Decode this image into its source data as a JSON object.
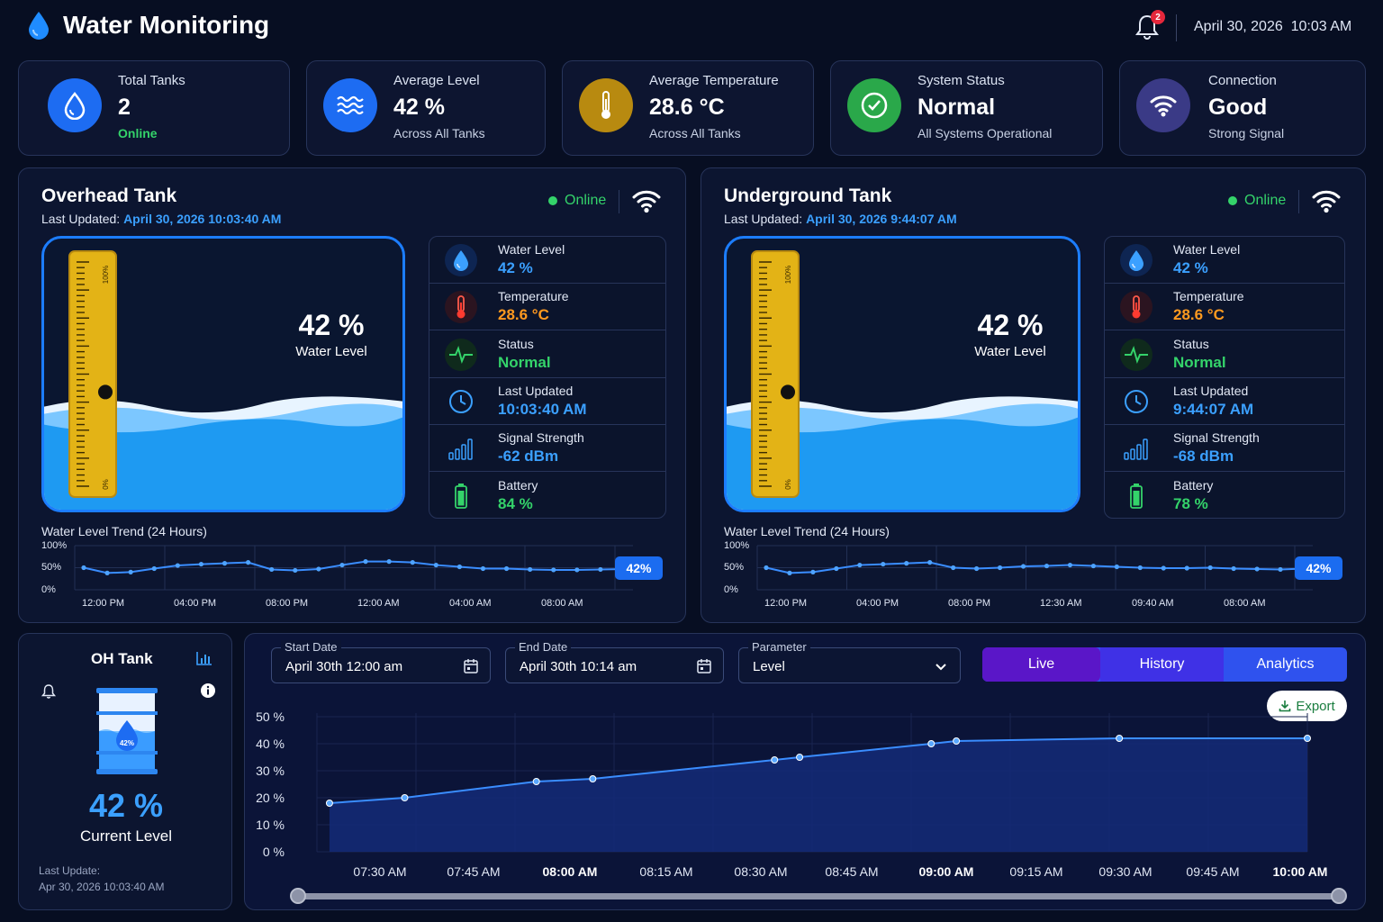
{
  "app": {
    "title": "Water Monitoring",
    "notifications": "2",
    "date": "April 30, 2026",
    "time": "10:03 AM"
  },
  "cards": [
    {
      "label": "Total Tanks",
      "value": "2",
      "sub": "Online",
      "icon": "water-drop-icon",
      "color": "#1d6cf2"
    },
    {
      "label": "Average Level",
      "value": "42 %",
      "sub": "Across All Tanks",
      "icon": "waves-icon",
      "color": "#1d6cf2"
    },
    {
      "label": "Average Temperature",
      "value": "28.6 °C",
      "sub": "Across All Tanks",
      "icon": "thermometer-icon",
      "color": "#b88a10"
    },
    {
      "label": "System Status",
      "value": "Normal",
      "sub": "All Systems Operational",
      "icon": "check-circle-icon",
      "color": "#2aa84a"
    },
    {
      "label": "Connection",
      "value": "Good",
      "sub": "Strong Signal",
      "icon": "wifi-icon",
      "color": "#3a3a86"
    }
  ],
  "tanks": [
    {
      "name": "Overhead Tank",
      "updated_label": "Last Updated:",
      "updated_value": "April 30, 2026 10:03:40 AM",
      "status": "Online",
      "level_big": "42 %",
      "level_label": "Water Level",
      "gauge_top": "100%",
      "gauge_bottom": "0%",
      "level_fraction": 0.42,
      "metrics": [
        {
          "label": "Water Level",
          "value": "42 %",
          "color": "#3ba0ff",
          "icon": "water-drop-icon"
        },
        {
          "label": "Temperature",
          "value": "28.6 °C",
          "color": "#ff9a1f",
          "icon": "thermometer-icon"
        },
        {
          "label": "Status",
          "value": "Normal",
          "color": "#34d36a",
          "icon": "pulse-icon"
        },
        {
          "label": "Last Updated",
          "value": "10:03:40 AM",
          "color": "#3ba0ff",
          "icon": "clock-icon"
        },
        {
          "label": "Signal Strength",
          "value": "-62 dBm",
          "color": "#3ba0ff",
          "icon": "signal-bars-icon"
        },
        {
          "label": "Battery",
          "value": "84 %",
          "color": "#34d36a",
          "icon": "battery-icon"
        }
      ],
      "trend": {
        "title": "Water Level Trend (24 Hours)",
        "y_ticks": [
          "100%",
          "50%",
          "0%"
        ],
        "x_ticks": [
          "12:00 PM",
          "04:00 PM",
          "08:00 PM",
          "12:00 AM",
          "04:00 AM",
          "08:00 AM"
        ],
        "values": [
          50,
          38,
          40,
          48,
          55,
          58,
          60,
          62,
          46,
          44,
          47,
          56,
          64,
          64,
          62,
          56,
          52,
          48,
          48,
          46,
          45,
          45,
          46,
          47
        ],
        "current": "42%"
      }
    },
    {
      "name": "Underground Tank",
      "updated_label": "Last Updated:",
      "updated_value": "April 30, 2026 9:44:07 AM",
      "status": "Online",
      "level_big": "42 %",
      "level_label": "Water Level",
      "gauge_top": "100%",
      "gauge_bottom": "0%",
      "level_fraction": 0.42,
      "metrics": [
        {
          "label": "Water Level",
          "value": "42 %",
          "color": "#3ba0ff",
          "icon": "water-drop-icon"
        },
        {
          "label": "Temperature",
          "value": "28.6 °C",
          "color": "#ff9a1f",
          "icon": "thermometer-icon"
        },
        {
          "label": "Status",
          "value": "Normal",
          "color": "#34d36a",
          "icon": "pulse-icon"
        },
        {
          "label": "Last Updated",
          "value": "9:44:07 AM",
          "color": "#3ba0ff",
          "icon": "clock-icon"
        },
        {
          "label": "Signal Strength",
          "value": "-68 dBm",
          "color": "#3ba0ff",
          "icon": "signal-bars-icon"
        },
        {
          "label": "Battery",
          "value": "78 %",
          "color": "#34d36a",
          "icon": "battery-icon"
        }
      ],
      "trend": {
        "title": "Water Level Trend (24 Hours)",
        "y_ticks": [
          "100%",
          "50%",
          "0%"
        ],
        "x_ticks": [
          "12:00 PM",
          "04:00 PM",
          "08:00 PM",
          "12:30 AM",
          "09:40 AM",
          "08:00 AM"
        ],
        "values": [
          50,
          38,
          40,
          48,
          56,
          58,
          60,
          62,
          50,
          48,
          50,
          53,
          54,
          56,
          54,
          52,
          50,
          49,
          49,
          50,
          48,
          47,
          46,
          48
        ],
        "current": "42%"
      }
    }
  ],
  "oh_tank": {
    "title": "OH Tank",
    "drum_label": "42%",
    "level": "42 %",
    "level_label": "Current Level",
    "update_label": "Last Update:",
    "update_value": "Apr 30, 2026 10:03:40 AM"
  },
  "filters": {
    "start": {
      "label": "Start Date",
      "value": "April 30th 12:00 am"
    },
    "end": {
      "label": "End Date",
      "value": "April 30th 10:14 am"
    },
    "param": {
      "label": "Parameter",
      "value": "Level"
    },
    "tabs": [
      "Live",
      "History",
      "Analytics"
    ],
    "active_tab": "Live",
    "export": "Export"
  },
  "chart_data": {
    "type": "area",
    "title": "",
    "xlabel": "",
    "ylabel": "",
    "y_ticks": [
      "50 %",
      "40 %",
      "30 %",
      "20 %",
      "10 %",
      "0 %"
    ],
    "ylim": [
      0,
      50
    ],
    "x_ticks": [
      "07:30 AM",
      "07:45 AM",
      "08:00 AM",
      "08:15 AM",
      "08:30 AM",
      "08:45 AM",
      "09:00 AM",
      "09:15 AM",
      "09:30 AM",
      "09:45 AM",
      "10:00 AM"
    ],
    "bold_ticks": [
      "08:00 AM",
      "09:00 AM",
      "10:00 AM"
    ],
    "series": [
      {
        "x": [
          "07:22 AM",
          "07:34 AM",
          "07:55 AM",
          "08:04 AM",
          "08:33 AM",
          "08:37 AM",
          "08:58 AM",
          "09:02 AM",
          "09:28 AM",
          "09:58 AM"
        ],
        "values": [
          18,
          20,
          26,
          27,
          34,
          35,
          40,
          41,
          42,
          42
        ]
      }
    ],
    "x_positions_minutes": [
      -8,
      4,
      25,
      34,
      63,
      67,
      88,
      92,
      118,
      148
    ],
    "grid": true,
    "color": "#3a8dff"
  }
}
